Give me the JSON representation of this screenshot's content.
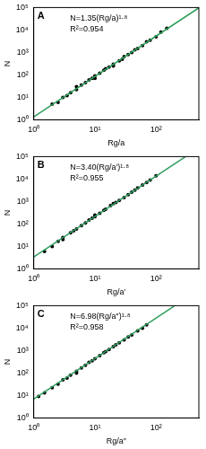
{
  "chart_data": [
    {
      "type": "scatter",
      "title": "A",
      "annotations": [
        "N=1.35(Rg/a)¹·⁸",
        "R²=0.954"
      ],
      "x_label": "Rg/a",
      "y_label": "N",
      "log": true,
      "grid": false,
      "xlim": [
        1,
        500
      ],
      "ylim": [
        1,
        100000
      ],
      "xticks": [
        {
          "value": 1,
          "label": "10⁰"
        },
        {
          "value": 10,
          "label": "10¹"
        },
        {
          "value": 100,
          "label": "10²"
        }
      ],
      "yticks": [
        {
          "value": 1,
          "label": "10⁰"
        },
        {
          "value": 10,
          "label": "10¹"
        },
        {
          "value": 100,
          "label": "10²"
        },
        {
          "value": 1000,
          "label": "10³"
        },
        {
          "value": 10000,
          "label": "10⁴"
        },
        {
          "value": 100000,
          "label": "10⁵"
        }
      ],
      "series": [
        {
          "type": "scatter",
          "color": "#000000",
          "marker": "circle",
          "x": [
            2,
            2.5,
            3,
            3.5,
            4,
            5,
            5,
            6,
            7,
            8,
            9,
            10,
            10,
            12,
            14,
            15,
            17,
            20,
            20,
            25,
            28,
            30,
            35,
            40,
            45,
            50,
            60,
            70,
            80,
            100,
            120,
            150
          ],
          "values": [
            5,
            6,
            10,
            12,
            16,
            22,
            30,
            35,
            45,
            60,
            70,
            90,
            70,
            120,
            160,
            190,
            220,
            300,
            250,
            420,
            500,
            650,
            800,
            1000,
            1300,
            1500,
            2000,
            3000,
            3500,
            5000,
            8000,
            12000
          ]
        },
        {
          "type": "line",
          "color": "#2e9e5b",
          "line_style": "solid",
          "x": [
            1,
            500
          ],
          "values": [
            1.35,
            97000
          ]
        }
      ]
    },
    {
      "type": "scatter",
      "title": "B",
      "annotations": [
        "N=3.40(Rg/a′)¹·⁸",
        "R²=0.955"
      ],
      "x_label": "Rg/a′",
      "y_label": "N",
      "log": true,
      "grid": false,
      "xlim": [
        1,
        500
      ],
      "ylim": [
        1,
        100000
      ],
      "xticks": [
        {
          "value": 1,
          "label": "10⁰"
        },
        {
          "value": 10,
          "label": "10¹"
        },
        {
          "value": 100,
          "label": "10²"
        }
      ],
      "yticks": [
        {
          "value": 1,
          "label": "10⁰"
        },
        {
          "value": 10,
          "label": "10¹"
        },
        {
          "value": 100,
          "label": "10²"
        },
        {
          "value": 1000,
          "label": "10³"
        },
        {
          "value": 10000,
          "label": "10⁴"
        },
        {
          "value": 100000,
          "label": "10⁵"
        }
      ],
      "series": [
        {
          "type": "scatter",
          "color": "#000000",
          "marker": "circle",
          "x": [
            1.5,
            2,
            2.5,
            3,
            3,
            4,
            4.5,
            5,
            6,
            7,
            8,
            9,
            10,
            10,
            12,
            14,
            15,
            18,
            20,
            22,
            25,
            30,
            35,
            40,
            45,
            50,
            60,
            70,
            80,
            100
          ],
          "values": [
            6,
            10,
            17,
            25,
            20,
            40,
            50,
            60,
            85,
            110,
            150,
            180,
            210,
            250,
            300,
            400,
            450,
            650,
            800,
            900,
            1100,
            1500,
            2000,
            2600,
            3200,
            4000,
            5500,
            7000,
            9000,
            14000
          ]
        },
        {
          "type": "line",
          "color": "#2e9e5b",
          "line_style": "solid",
          "x": [
            1,
            300
          ],
          "values": [
            3.4,
            98000
          ]
        }
      ]
    },
    {
      "type": "scatter",
      "title": "C",
      "annotations": [
        "N=6.98(Rg/a″)¹·⁸",
        "R²=0.958"
      ],
      "x_label": "Rg/a″",
      "y_label": "N",
      "log": true,
      "grid": false,
      "xlim": [
        1,
        500
      ],
      "ylim": [
        1,
        100000
      ],
      "xticks": [
        {
          "value": 1,
          "label": "10⁰"
        },
        {
          "value": 10,
          "label": "10¹"
        },
        {
          "value": 100,
          "label": "10²"
        }
      ],
      "yticks": [
        {
          "value": 1,
          "label": "10⁰"
        },
        {
          "value": 10,
          "label": "10¹"
        },
        {
          "value": 100,
          "label": "10²"
        },
        {
          "value": 1000,
          "label": "10³"
        },
        {
          "value": 10000,
          "label": "10⁴"
        },
        {
          "value": 100000,
          "label": "10⁵"
        }
      ],
      "series": [
        {
          "type": "scatter",
          "color": "#000000",
          "marker": "circle",
          "x": [
            1.2,
            1.5,
            2,
            2.5,
            3,
            3.5,
            4,
            5,
            5,
            6,
            7,
            8,
            9,
            10,
            12,
            14,
            15,
            17,
            20,
            22,
            25,
            30,
            35,
            40,
            50,
            60,
            70
          ],
          "values": [
            9,
            13,
            22,
            32,
            50,
            60,
            80,
            120,
            100,
            170,
            220,
            300,
            350,
            430,
            600,
            800,
            900,
            1100,
            1500,
            1800,
            2200,
            3000,
            4000,
            5000,
            7500,
            10000,
            14000
          ]
        },
        {
          "type": "line",
          "color": "#2e9e5b",
          "line_style": "solid",
          "x": [
            1,
            200
          ],
          "values": [
            6.98,
            97000
          ]
        }
      ]
    }
  ]
}
